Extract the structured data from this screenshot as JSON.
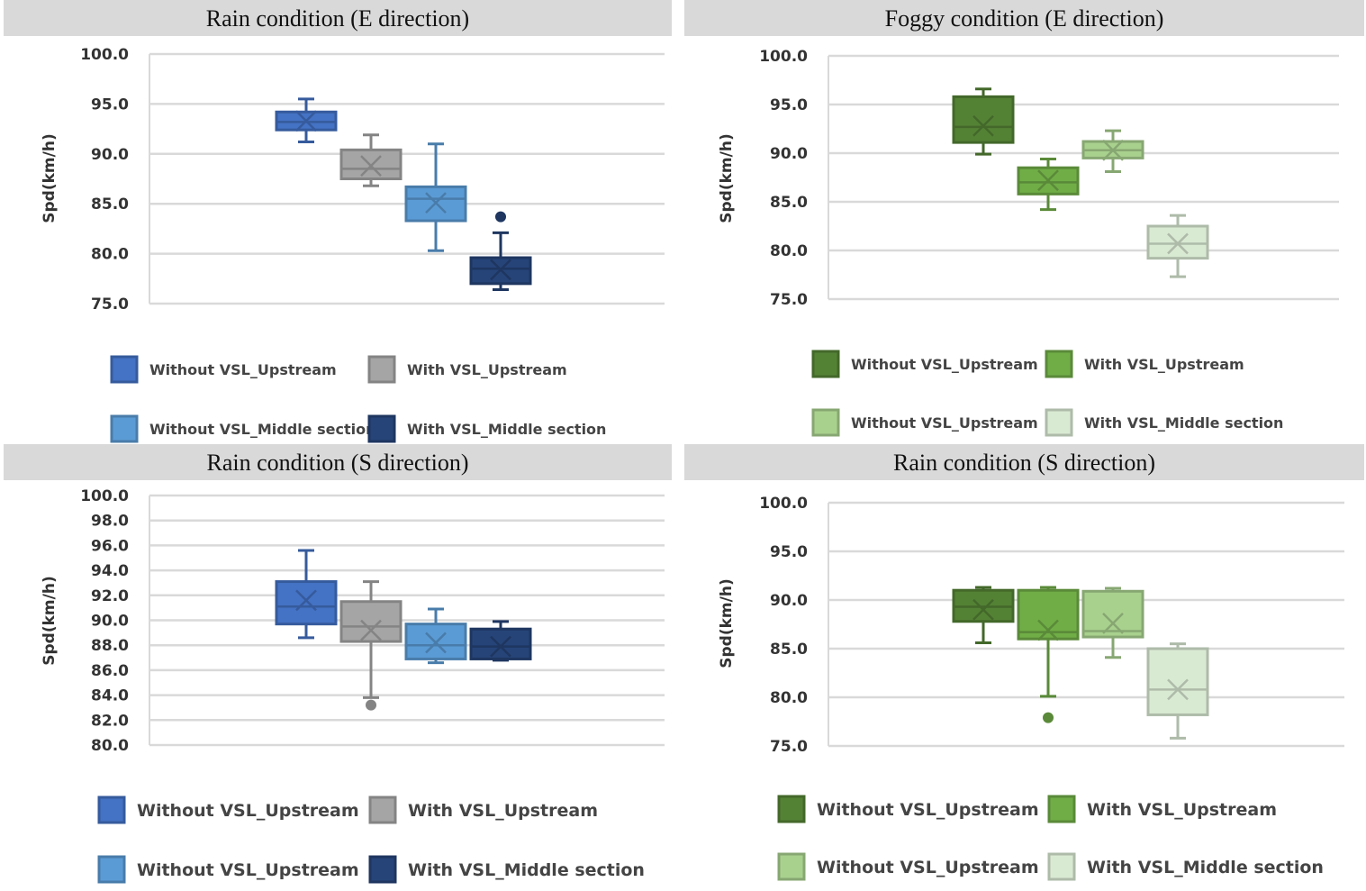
{
  "chart_data": [
    {
      "type": "box",
      "title": "Rain condition (E direction)",
      "ylabel": "Spd(km/h)",
      "ylim": [
        75,
        100
      ],
      "yticks": [
        "100.0",
        "95.0",
        "90.0",
        "85.0",
        "80.0",
        "75.0"
      ],
      "series": [
        {
          "name": "Without VSL_Upstream",
          "color": "#4472c4",
          "min": 91.2,
          "q1": 92.4,
          "median": 93.2,
          "q3": 94.2,
          "max": 95.5,
          "mean": 93.3,
          "outliers": []
        },
        {
          "name": "With VSL_Upstream",
          "color": "#a5a5a5",
          "min": 86.8,
          "q1": 87.5,
          "median": 88.5,
          "q3": 90.4,
          "max": 91.9,
          "mean": 88.8,
          "outliers": []
        },
        {
          "name": "Without VSL_Middle section",
          "color": "#5b9bd5",
          "min": 80.3,
          "q1": 83.3,
          "median": 85.5,
          "q3": 86.7,
          "max": 91.0,
          "mean": 85.1,
          "outliers": []
        },
        {
          "name": "With VSL_Middle section",
          "color": "#264478",
          "min": 76.4,
          "q1": 77.0,
          "median": 78.5,
          "q3": 79.6,
          "max": 82.1,
          "mean": 78.4,
          "outliers": [
            83.7
          ]
        }
      ]
    },
    {
      "type": "box",
      "title": "Foggy condition (E direction)",
      "ylabel": "Spd(km/h)",
      "ylim": [
        75,
        100
      ],
      "yticks": [
        "100.0",
        "95.0",
        "90.0",
        "85.0",
        "80.0",
        "75.0"
      ],
      "series": [
        {
          "name": "Without VSL_Upstream",
          "color": "#548235",
          "min": 89.9,
          "q1": 91.1,
          "median": 92.7,
          "q3": 95.8,
          "max": 96.6,
          "mean": 92.8,
          "outliers": []
        },
        {
          "name": "With VSL_Upstream",
          "color": "#70ad47",
          "min": 84.2,
          "q1": 85.8,
          "median": 87.0,
          "q3": 88.5,
          "max": 89.4,
          "mean": 87.2,
          "outliers": []
        },
        {
          "name": "Without VSL_Upstream",
          "color": "#a9d18e",
          "min": 88.1,
          "q1": 89.5,
          "median": 90.3,
          "q3": 91.2,
          "max": 92.3,
          "mean": 90.3,
          "outliers": []
        },
        {
          "name": "With VSL_Middle section",
          "color": "#d9ead3",
          "min": 77.3,
          "q1": 79.2,
          "median": 80.7,
          "q3": 82.5,
          "max": 83.6,
          "mean": 80.7,
          "outliers": []
        }
      ]
    },
    {
      "type": "box",
      "title": "Rain condition (S direction)",
      "ylabel": "Spd(km/h)",
      "ylim": [
        80,
        100
      ],
      "yticks": [
        "100.0",
        "98.0",
        "96.0",
        "94.0",
        "92.0",
        "90.0",
        "88.0",
        "86.0",
        "84.0",
        "82.0",
        "80.0"
      ],
      "series": [
        {
          "name": "Without VSL_Upstream",
          "color": "#4472c4",
          "min": 88.6,
          "q1": 89.7,
          "median": 91.1,
          "q3": 93.1,
          "max": 95.6,
          "mean": 91.6,
          "outliers": []
        },
        {
          "name": "With VSL_Upstream",
          "color": "#a5a5a5",
          "min": 83.8,
          "q1": 88.3,
          "median": 89.5,
          "q3": 91.5,
          "max": 93.1,
          "mean": 89.2,
          "outliers": [
            83.2
          ]
        },
        {
          "name": "Without VSL_Upstream",
          "color": "#5b9bd5",
          "min": 86.6,
          "q1": 86.9,
          "median": 88.0,
          "q3": 89.7,
          "max": 90.9,
          "mean": 88.2,
          "outliers": []
        },
        {
          "name": "With VSL_Middle section",
          "color": "#264478",
          "min": 86.8,
          "q1": 86.9,
          "median": 87.9,
          "q3": 89.3,
          "max": 89.9,
          "mean": 87.9,
          "outliers": []
        }
      ]
    },
    {
      "type": "box",
      "title": "Rain condition (S direction)",
      "ylabel": "Spd(km/h)",
      "ylim": [
        75,
        100
      ],
      "yticks": [
        "100.0",
        "95.0",
        "90.0",
        "85.0",
        "80.0",
        "75.0"
      ],
      "series": [
        {
          "name": "Without VSL_Upstream",
          "color": "#548235",
          "min": 85.6,
          "q1": 87.8,
          "median": 89.3,
          "q3": 91.0,
          "max": 91.3,
          "mean": 89.0,
          "outliers": []
        },
        {
          "name": "With VSL_Upstream",
          "color": "#70ad47",
          "min": 80.1,
          "q1": 86.0,
          "median": 86.7,
          "q3": 91.0,
          "max": 91.3,
          "mean": 86.9,
          "outliers": [
            77.9
          ]
        },
        {
          "name": "Without VSL_Upstream",
          "color": "#a9d18e",
          "min": 84.1,
          "q1": 86.2,
          "median": 86.8,
          "q3": 90.9,
          "max": 91.2,
          "mean": 87.6,
          "outliers": []
        },
        {
          "name": "With VSL_Middle section",
          "color": "#d9ead3",
          "min": 75.8,
          "q1": 78.2,
          "median": 80.8,
          "q3": 85.0,
          "max": 85.5,
          "mean": 80.8,
          "outliers": []
        }
      ]
    }
  ]
}
